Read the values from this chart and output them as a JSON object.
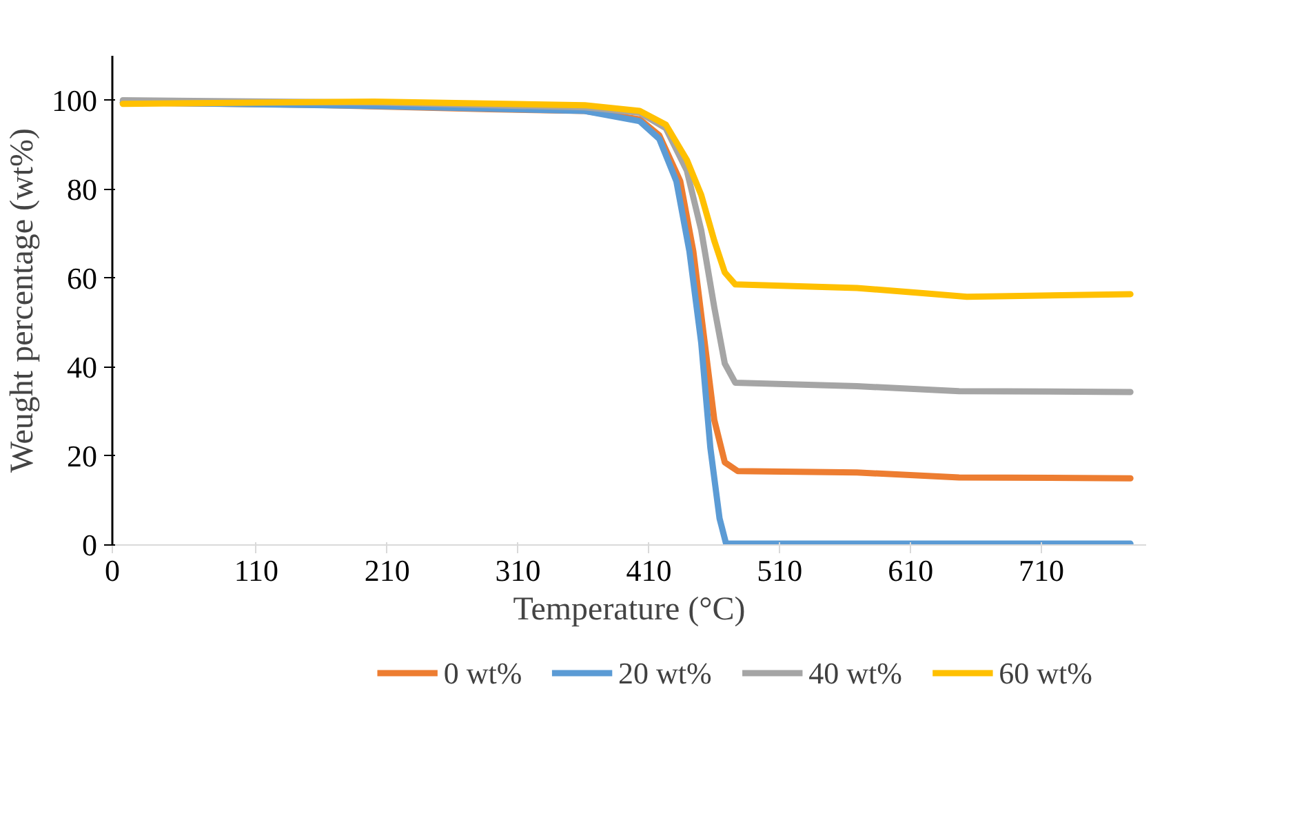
{
  "chart_data": {
    "type": "line",
    "xlabel": "Temperature (°C)",
    "ylabel": "Weught percentage (wt%)",
    "xlim": [
      0,
      790
    ],
    "xticks": [
      0,
      110,
      210,
      310,
      410,
      510,
      610,
      710
    ],
    "ylim": [
      0,
      110
    ],
    "yticks": [
      0,
      20,
      40,
      60,
      80,
      100
    ],
    "grid": false,
    "legend": "bottom",
    "marker": "none",
    "line_style": "solid",
    "series": [
      {
        "name": "0 wt%",
        "color": "#ed7d31",
        "x": [
          8,
          150,
          288,
          361,
          403,
          418,
          434,
          444,
          452,
          460,
          468,
          478,
          569,
          647,
          778
        ],
        "values": [
          99.5,
          99,
          98,
          97.6,
          95.7,
          92.1,
          81.8,
          66,
          47.1,
          28.1,
          18.6,
          16.6,
          16.3,
          15.2,
          15.0
        ]
      },
      {
        "name": "20 wt%",
        "color": "#5b9bd5",
        "x": [
          8,
          205,
          361,
          403,
          418,
          431,
          441,
          450,
          457,
          464,
          469,
          600,
          778
        ],
        "values": [
          99.5,
          98.7,
          97.6,
          95.3,
          91.3,
          81.8,
          66,
          45.5,
          21.8,
          6,
          0.3,
          0.3,
          0.3
        ]
      },
      {
        "name": "40 wt%",
        "color": "#a5a5a5",
        "x": [
          8,
          200,
          361,
          403,
          423,
          439,
          450,
          460,
          468,
          476,
          569,
          647,
          778
        ],
        "values": [
          100,
          99.5,
          98.4,
          97.2,
          93.7,
          84.2,
          70.8,
          53.4,
          40.8,
          36.5,
          35.7,
          34.6,
          34.4
        ]
      },
      {
        "name": "60 wt%",
        "color": "#ffc000",
        "x": [
          8,
          200,
          361,
          403,
          423,
          439,
          450,
          460,
          468,
          476,
          569,
          621,
          653,
          778
        ],
        "values": [
          99.2,
          99.7,
          98.9,
          97.6,
          94.5,
          86.6,
          78.7,
          68.4,
          61.3,
          58.6,
          57.8,
          56.6,
          55.8,
          56.4
        ]
      }
    ]
  }
}
